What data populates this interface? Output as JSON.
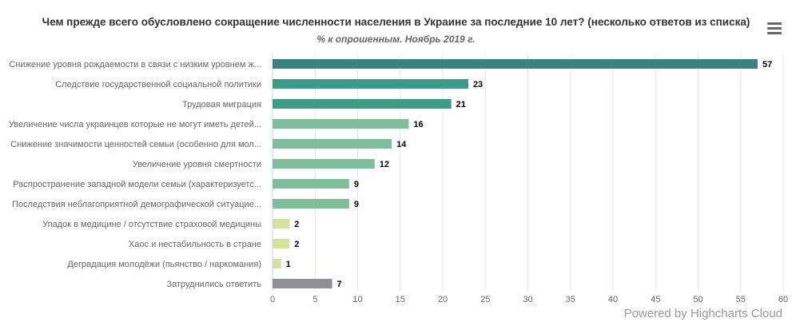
{
  "chart_data": {
    "type": "bar",
    "orientation": "horizontal",
    "title": "Чем прежде всего обусловлено сокращение численности населения в Украине за последние 10 лет? (несколько ответов из списка)",
    "subtitle": "% к опрошенным. Ноябрь 2019 г.",
    "categories": [
      "Снижение уровня рождаемости в связи с низким уровнем ж...",
      "Следствие государственной социальной политики",
      "Трудовая миграция",
      "Увеличение числа украинцев которые не могут иметь детей...",
      "Снижение значимости ценностей семьи (особенно для мол...",
      "Увеличение уровня смертности",
      "Распространение западной модели семьи (характеризуетс...",
      "Последствия неблагоприятной демографической ситуацие...",
      "Упадок в медицине / отсутствие страховой медицины",
      "Хаос и нестабильность в стране",
      "Деградация молодёжи (пьянство / наркомания)",
      "Затруднились ответить"
    ],
    "values": [
      57,
      23,
      21,
      16,
      14,
      12,
      9,
      9,
      2,
      2,
      1,
      7
    ],
    "colors": [
      "#3a8480",
      "#3a9c84",
      "#3a9c84",
      "#7dbf9a",
      "#7dbf9a",
      "#7dbf9a",
      "#7dbf9a",
      "#7dbf9a",
      "#d4e39c",
      "#d4e39c",
      "#d4e39c",
      "#8f8f95"
    ],
    "xlim": [
      0,
      60
    ],
    "xticks": [
      0,
      5,
      10,
      15,
      20,
      25,
      30,
      35,
      40,
      45,
      50,
      55,
      60
    ],
    "grid": true,
    "data_labels": true
  },
  "credits": "Powered by Highcharts Cloud",
  "menu_icon": "hamburger-menu-icon"
}
